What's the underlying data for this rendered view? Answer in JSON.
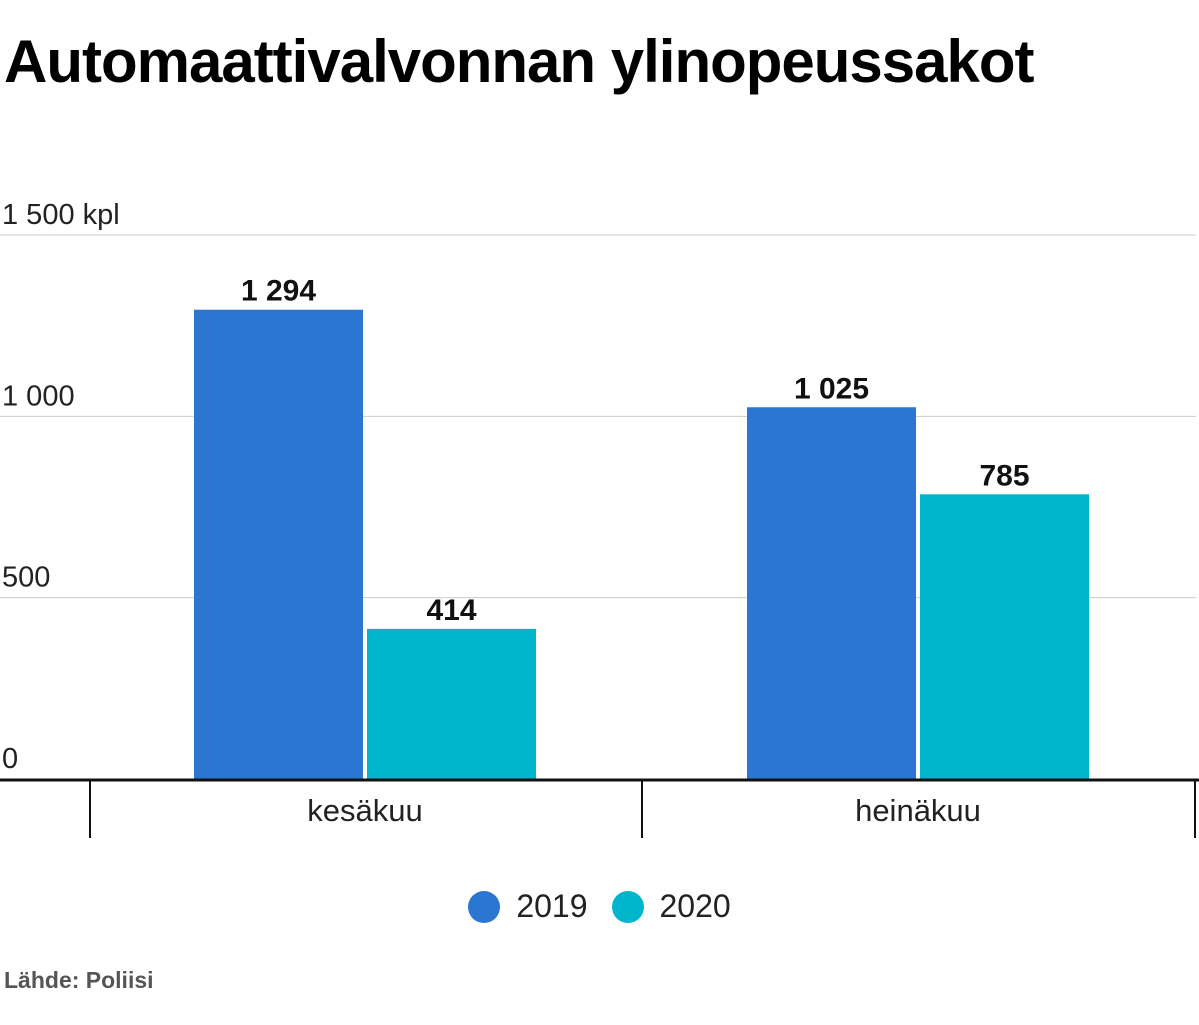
{
  "title": "Automaattivalvonnan ylinopeussakot",
  "source": "Lähde: Poliisi",
  "chart_data": {
    "type": "bar",
    "categories": [
      "kesäkuu",
      "heinäkuu"
    ],
    "series": [
      {
        "name": "2019",
        "values": [
          1294,
          1025
        ],
        "labels": [
          "1 294",
          "1 025"
        ],
        "color": "#2b76d1"
      },
      {
        "name": "2020",
        "values": [
          414,
          785
        ],
        "labels": [
          "414",
          "785"
        ],
        "color": "#00b5cc"
      }
    ],
    "yticks": [
      {
        "value": 0,
        "label": "0"
      },
      {
        "value": 500,
        "label": "500"
      },
      {
        "value": 1000,
        "label": "1 000"
      },
      {
        "value": 1500,
        "label": "1 500 kpl"
      }
    ],
    "ylim": [
      0,
      1500
    ],
    "grid": true,
    "legend_position": "bottom"
  }
}
